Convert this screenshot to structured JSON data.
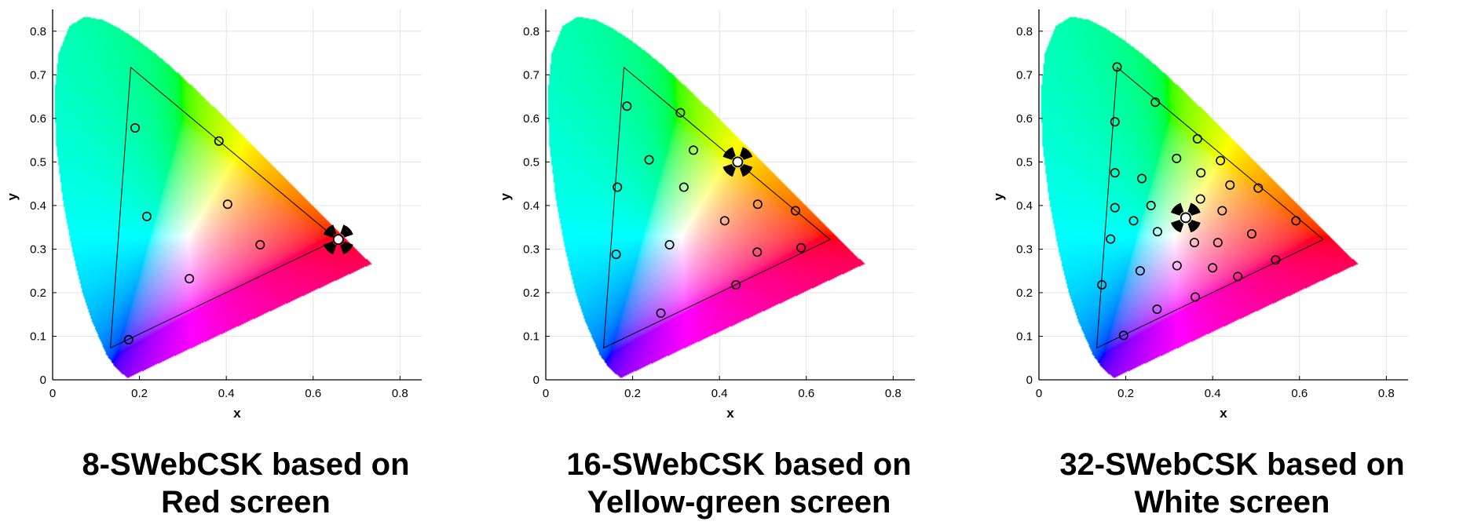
{
  "chart_data": [
    {
      "type": "scatter",
      "title": "",
      "xlabel": "x",
      "ylabel": "y",
      "xlim": [
        0,
        0.85
      ],
      "ylim": [
        0,
        0.85
      ],
      "xticks": [
        "0",
        "0.2",
        "0.4",
        "0.6",
        "0.8"
      ],
      "yticks": [
        "0",
        "0.1",
        "0.2",
        "0.3",
        "0.4",
        "0.5",
        "0.6",
        "0.7",
        "0.8"
      ],
      "grid": true,
      "background": "CIE 1931 chromaticity diagram",
      "gamut_triangle": [
        [
          0.18,
          0.717
        ],
        [
          0.655,
          0.322
        ],
        [
          0.133,
          0.073
        ]
      ],
      "series": [
        {
          "marker": "circle",
          "points": [
            [
              0.19,
              0.578
            ],
            [
              0.383,
              0.548
            ],
            [
              0.217,
              0.375
            ],
            [
              0.403,
              0.403
            ],
            [
              0.478,
              0.31
            ],
            [
              0.658,
              0.322
            ],
            [
              0.315,
              0.232
            ],
            [
              0.175,
              0.092
            ]
          ]
        }
      ],
      "highlight": {
        "x": 0.658,
        "y": 0.322
      },
      "caption_lines": [
        "8-SWebCSK based on",
        "Red screen"
      ]
    },
    {
      "type": "scatter",
      "title": "",
      "xlabel": "x",
      "ylabel": "y",
      "xlim": [
        0,
        0.85
      ],
      "ylim": [
        0,
        0.85
      ],
      "xticks": [
        "0",
        "0.2",
        "0.4",
        "0.6",
        "0.8"
      ],
      "yticks": [
        "0",
        "0.1",
        "0.2",
        "0.3",
        "0.4",
        "0.5",
        "0.6",
        "0.7",
        "0.8"
      ],
      "grid": true,
      "background": "CIE 1931 chromaticity diagram",
      "gamut_triangle": [
        [
          0.18,
          0.717
        ],
        [
          0.655,
          0.322
        ],
        [
          0.133,
          0.073
        ]
      ],
      "series": [
        {
          "marker": "circle",
          "points": [
            [
              0.187,
              0.628
            ],
            [
              0.31,
              0.613
            ],
            [
              0.238,
              0.505
            ],
            [
              0.34,
              0.527
            ],
            [
              0.442,
              0.5
            ],
            [
              0.165,
              0.442
            ],
            [
              0.318,
              0.442
            ],
            [
              0.488,
              0.403
            ],
            [
              0.575,
              0.388
            ],
            [
              0.412,
              0.365
            ],
            [
              0.162,
              0.288
            ],
            [
              0.285,
              0.31
            ],
            [
              0.487,
              0.293
            ],
            [
              0.588,
              0.303
            ],
            [
              0.438,
              0.218
            ],
            [
              0.265,
              0.153
            ]
          ]
        }
      ],
      "highlight": {
        "x": 0.442,
        "y": 0.5
      },
      "caption_lines": [
        "16-SWebCSK based on",
        "Yellow-green screen"
      ]
    },
    {
      "type": "scatter",
      "title": "",
      "xlabel": "x",
      "ylabel": "y",
      "xlim": [
        0,
        0.85
      ],
      "ylim": [
        0,
        0.85
      ],
      "xticks": [
        "0",
        "0.2",
        "0.4",
        "0.6",
        "0.8"
      ],
      "yticks": [
        "0",
        "0.1",
        "0.2",
        "0.3",
        "0.4",
        "0.5",
        "0.6",
        "0.7",
        "0.8"
      ],
      "grid": true,
      "background": "CIE 1931 chromaticity diagram",
      "gamut_triangle": [
        [
          0.18,
          0.717
        ],
        [
          0.655,
          0.322
        ],
        [
          0.133,
          0.073
        ]
      ],
      "series": [
        {
          "marker": "circle",
          "points": [
            [
              0.18,
              0.718
            ],
            [
              0.268,
              0.637
            ],
            [
              0.175,
              0.592
            ],
            [
              0.365,
              0.553
            ],
            [
              0.317,
              0.508
            ],
            [
              0.418,
              0.503
            ],
            [
              0.175,
              0.475
            ],
            [
              0.237,
              0.462
            ],
            [
              0.373,
              0.475
            ],
            [
              0.44,
              0.447
            ],
            [
              0.505,
              0.44
            ],
            [
              0.175,
              0.395
            ],
            [
              0.258,
              0.4
            ],
            [
              0.372,
              0.415
            ],
            [
              0.422,
              0.388
            ],
            [
              0.218,
              0.365
            ],
            [
              0.338,
              0.372
            ],
            [
              0.273,
              0.34
            ],
            [
              0.165,
              0.323
            ],
            [
              0.358,
              0.315
            ],
            [
              0.412,
              0.315
            ],
            [
              0.49,
              0.335
            ],
            [
              0.592,
              0.365
            ],
            [
              0.233,
              0.25
            ],
            [
              0.318,
              0.262
            ],
            [
              0.4,
              0.257
            ],
            [
              0.545,
              0.275
            ],
            [
              0.145,
              0.218
            ],
            [
              0.458,
              0.237
            ],
            [
              0.36,
              0.19
            ],
            [
              0.272,
              0.162
            ],
            [
              0.195,
              0.102
            ]
          ]
        }
      ],
      "highlight": {
        "x": 0.338,
        "y": 0.372
      },
      "caption_lines": [
        "32-SWebCSK based on",
        "White screen"
      ]
    }
  ]
}
